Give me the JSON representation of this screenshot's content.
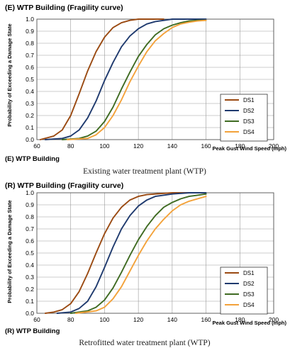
{
  "colors": {
    "DS1": "#9a4a12",
    "DS2": "#1f3a6e",
    "DS3": "#3f6b22",
    "DS4": "#f3a23a"
  },
  "chart_data": [
    {
      "type": "line",
      "title": "(E) WTP Building (Fragility curve)",
      "footer": "(E) WTP Building",
      "caption": "Existing water treatment plant (WTP)",
      "xlabel": "Peak Gust Wind Speed (mph)",
      "ylabel": "Probability of Exceeding a Damage State",
      "xlim": [
        60,
        200
      ],
      "ylim": [
        0,
        1
      ],
      "xticks": [
        60,
        80,
        100,
        120,
        140,
        160,
        180,
        200
      ],
      "yticks": [
        "0.0",
        "0.1",
        "0.2",
        "0.3",
        "0.4",
        "0.5",
        "0.6",
        "0.7",
        "0.8",
        "0.9",
        "1.0"
      ],
      "grid": true,
      "legend": "bottom-right",
      "series": [
        {
          "name": "DS1",
          "x": [
            62,
            70,
            75,
            80,
            85,
            90,
            95,
            100,
            105,
            110,
            115,
            120,
            125,
            130,
            135
          ],
          "y": [
            0.0,
            0.03,
            0.08,
            0.2,
            0.38,
            0.57,
            0.73,
            0.85,
            0.93,
            0.97,
            0.99,
            1.0,
            1.0,
            1.0,
            1.0
          ]
        },
        {
          "name": "DS2",
          "x": [
            65,
            75,
            80,
            85,
            90,
            95,
            100,
            105,
            110,
            115,
            120,
            125,
            130,
            140,
            150,
            160
          ],
          "y": [
            0.0,
            0.01,
            0.03,
            0.08,
            0.18,
            0.32,
            0.49,
            0.64,
            0.77,
            0.86,
            0.92,
            0.96,
            0.98,
            1.0,
            1.0,
            1.0
          ]
        },
        {
          "name": "DS3",
          "x": [
            75,
            85,
            90,
            95,
            100,
            105,
            110,
            115,
            120,
            125,
            130,
            135,
            140,
            145,
            150,
            155,
            160
          ],
          "y": [
            0.0,
            0.01,
            0.03,
            0.07,
            0.15,
            0.27,
            0.42,
            0.56,
            0.69,
            0.79,
            0.87,
            0.92,
            0.95,
            0.97,
            0.985,
            0.99,
            0.99
          ]
        },
        {
          "name": "DS4",
          "x": [
            78,
            90,
            95,
            100,
            105,
            110,
            115,
            120,
            125,
            130,
            135,
            140,
            145,
            150,
            155,
            160
          ],
          "y": [
            0.0,
            0.01,
            0.04,
            0.1,
            0.2,
            0.33,
            0.48,
            0.61,
            0.73,
            0.82,
            0.88,
            0.93,
            0.96,
            0.975,
            0.985,
            0.99
          ]
        }
      ]
    },
    {
      "type": "line",
      "title": "(R) WTP Building (Fragility curve)",
      "footer": "(R) WTP Building",
      "caption": "Retrofitted water treatment plant (WTP)",
      "xlabel": "Peak Gust Wind Speed (mph)",
      "ylabel": "Probability of Exceeding a Damage State",
      "xlim": [
        60,
        200
      ],
      "ylim": [
        0,
        1
      ],
      "xticks": [
        60,
        80,
        100,
        120,
        140,
        160,
        180,
        200
      ],
      "yticks": [
        "0.0",
        "0.1",
        "0.2",
        "0.3",
        "0.4",
        "0.5",
        "0.6",
        "0.7",
        "0.8",
        "0.9",
        "1.0"
      ],
      "grid": true,
      "legend": "bottom-right",
      "series": [
        {
          "name": "DS1",
          "x": [
            65,
            70,
            75,
            80,
            85,
            90,
            95,
            100,
            105,
            110,
            115,
            120,
            125,
            130,
            140,
            150
          ],
          "y": [
            0.0,
            0.01,
            0.03,
            0.08,
            0.18,
            0.33,
            0.5,
            0.66,
            0.79,
            0.88,
            0.94,
            0.97,
            0.985,
            0.99,
            1.0,
            1.0
          ]
        },
        {
          "name": "DS2",
          "x": [
            72,
            80,
            85,
            90,
            95,
            100,
            105,
            110,
            115,
            120,
            125,
            130,
            135,
            140,
            150,
            160
          ],
          "y": [
            0.0,
            0.01,
            0.04,
            0.1,
            0.22,
            0.38,
            0.55,
            0.7,
            0.81,
            0.89,
            0.94,
            0.97,
            0.98,
            0.99,
            1.0,
            1.0
          ]
        },
        {
          "name": "DS3",
          "x": [
            80,
            90,
            95,
            100,
            105,
            110,
            115,
            120,
            125,
            130,
            135,
            140,
            145,
            150,
            155,
            160
          ],
          "y": [
            0.0,
            0.02,
            0.05,
            0.11,
            0.21,
            0.34,
            0.48,
            0.61,
            0.72,
            0.81,
            0.88,
            0.92,
            0.95,
            0.97,
            0.98,
            0.99
          ]
        },
        {
          "name": "DS4",
          "x": [
            83,
            95,
            100,
            105,
            110,
            115,
            120,
            125,
            130,
            135,
            140,
            145,
            150,
            155,
            160
          ],
          "y": [
            0.0,
            0.02,
            0.05,
            0.12,
            0.22,
            0.35,
            0.48,
            0.6,
            0.7,
            0.78,
            0.85,
            0.9,
            0.93,
            0.95,
            0.97
          ]
        }
      ]
    }
  ]
}
